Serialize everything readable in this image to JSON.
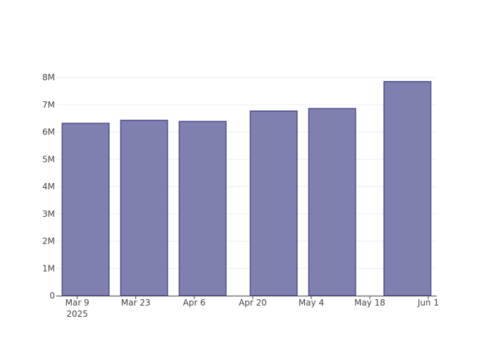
{
  "chart_data": {
    "type": "bar",
    "x": [
      "2025-03-11",
      "2025-03-25",
      "2025-04-08",
      "2025-04-25",
      "2025-05-09",
      "2025-05-27"
    ],
    "values": [
      6320000,
      6430000,
      6390000,
      6770000,
      6860000,
      7850000
    ],
    "color": "#7f7fb0",
    "edge_color": "#4b4b8c",
    "xlim": [
      "2025-03-04",
      "2025-06-03"
    ],
    "xticks": [
      {
        "value": "2025-03-09",
        "label": "Mar 9\n2025"
      },
      {
        "value": "2025-03-23",
        "label": "Mar 23"
      },
      {
        "value": "2025-04-06",
        "label": "Apr 6"
      },
      {
        "value": "2025-04-20",
        "label": "Apr 20"
      },
      {
        "value": "2025-05-04",
        "label": "May 4"
      },
      {
        "value": "2025-05-18",
        "label": "May 18"
      },
      {
        "value": "2025-06-01",
        "label": "Jun 1"
      }
    ],
    "ylim": [
      0,
      8260000
    ],
    "yticks": [
      0,
      {
        "value": 1000000,
        "label": "1M"
      },
      {
        "value": 2000000,
        "label": "2M"
      },
      {
        "value": 3000000,
        "label": "3M"
      },
      {
        "value": 4000000,
        "label": "4M"
      },
      {
        "value": 5000000,
        "label": "5M"
      },
      {
        "value": 6000000,
        "label": "6M"
      },
      {
        "value": 7000000,
        "label": "7M"
      },
      {
        "value": 8000000,
        "label": "8M"
      }
    ],
    "grid": true
  }
}
